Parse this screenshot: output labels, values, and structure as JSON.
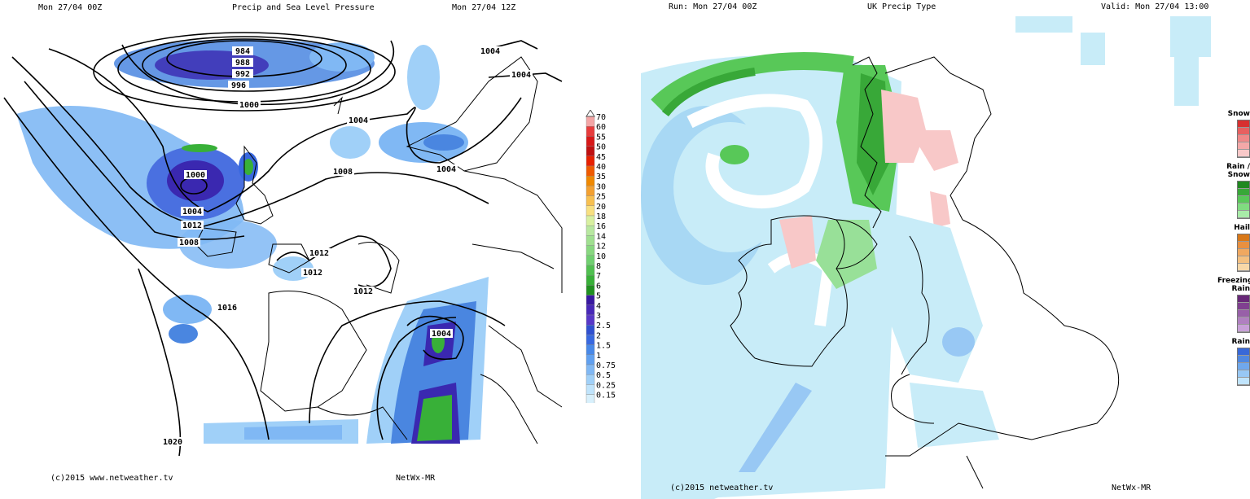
{
  "left": {
    "header_left": "Mon 27/04 00Z",
    "header_center": "Precip and Sea Level Pressure",
    "header_right": "Mon 27/04 12Z",
    "footer_left": "(c)2015 www.netweather.tv",
    "footer_right": "NetWx-MR",
    "isobar_labels": [
      "984",
      "988",
      "992",
      "996",
      "1000",
      "1004",
      "1004",
      "1004",
      "1004",
      "1000",
      "1004",
      "1008",
      "1012",
      "1008",
      "1012",
      "1012",
      "1012",
      "1016",
      "1004",
      "1020"
    ],
    "scale_values": [
      "70",
      "60",
      "55",
      "50",
      "45",
      "40",
      "35",
      "30",
      "25",
      "20",
      "18",
      "16",
      "14",
      "12",
      "10",
      "8",
      "7",
      "6",
      "5",
      "4",
      "3",
      "2.5",
      "2",
      "1.5",
      "1",
      "0.75",
      "0.5",
      "0.25",
      "0.15"
    ],
    "scale_colors": [
      "#f4a6a6",
      "#e83c3c",
      "#d81818",
      "#c01010",
      "#e82000",
      "#f05a00",
      "#f08800",
      "#f4a030",
      "#f8c050",
      "#f8e080",
      "#d8f0a0",
      "#b8e8a0",
      "#a0e090",
      "#88d880",
      "#70d070",
      "#50c050",
      "#38b038",
      "#209020",
      "#3818a0",
      "#4828b8",
      "#5838c8",
      "#3050d0",
      "#3868e0",
      "#4888e8",
      "#60a0f0",
      "#80b8f4",
      "#a0d0f8",
      "#c0e4fc",
      "#d8f0fc"
    ]
  },
  "right": {
    "header_left": "Run: Mon 27/04 00Z",
    "header_center": "UK Precip Type",
    "header_right": "Valid: Mon 27/04 13:00",
    "footer_left": "(c)2015 netweather.tv",
    "footer_right": "NetWx-MR",
    "legend": [
      {
        "label": "Snow",
        "colors": [
          "#d83030",
          "#e86060",
          "#f08888",
          "#f4a8a8",
          "#f8c8c8"
        ]
      },
      {
        "label": "Rain / Snow",
        "colors": [
          "#208820",
          "#38a838",
          "#58c858",
          "#80dc80",
          "#a8ecA8"
        ]
      },
      {
        "label": "Hail",
        "colors": [
          "#d87818",
          "#e89040",
          "#f0a860",
          "#f4c080",
          "#f8d8a8"
        ]
      },
      {
        "label": "Freezing Rain",
        "colors": [
          "#682878",
          "#804090",
          "#9860a8",
          "#b080c0",
          "#c8a0d8"
        ]
      },
      {
        "label": "Rain",
        "colors": [
          "#3868d8",
          "#5088e0",
          "#70a8ec",
          "#98c8f4",
          "#c0e4fc"
        ]
      }
    ]
  }
}
